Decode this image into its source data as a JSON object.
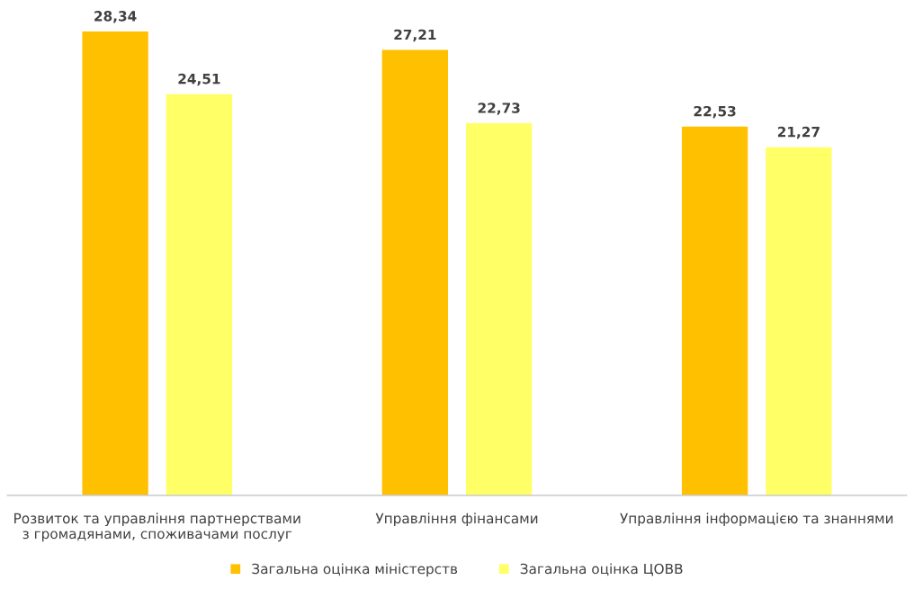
{
  "chart_data": {
    "type": "bar",
    "categories": [
      "Розвиток та управління партнерствами\nз громадянами, споживачами послуг",
      "Управління фінансами",
      "Управління інформацією та знаннями"
    ],
    "series": [
      {
        "name": "Загальна оцінка міністерств",
        "color": "#ffc000",
        "values": [
          28.34,
          27.21,
          22.53
        ],
        "value_labels": [
          "28,34",
          "27,21",
          "22,53"
        ]
      },
      {
        "name": "Загальна оцінка ЦОВВ",
        "color": "#ffff66",
        "values": [
          24.51,
          22.73,
          21.27
        ],
        "value_labels": [
          "24,51",
          "22,73",
          "21,27"
        ]
      }
    ],
    "tick_labels": "x",
    "grid": false,
    "legend": "bottom"
  }
}
